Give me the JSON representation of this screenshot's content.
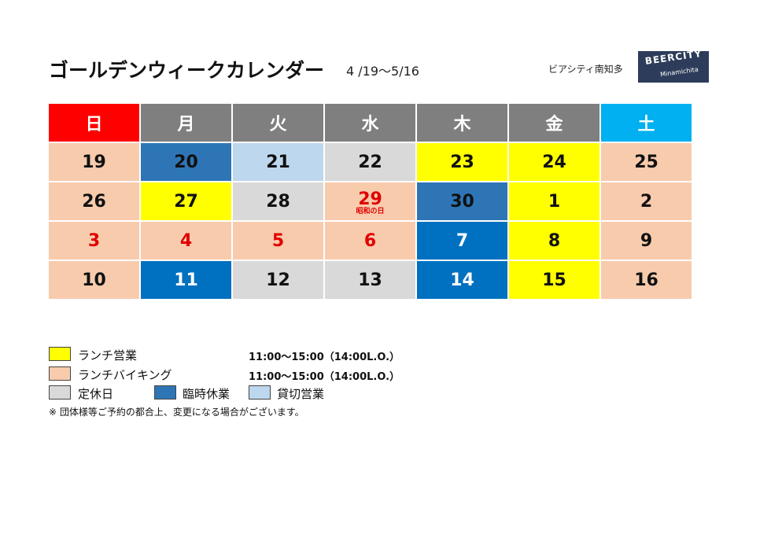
{
  "header": {
    "title": "ゴールデンウィークカレンダー",
    "range": "4 /19～5/16",
    "store": "ビアシティ南知多",
    "logo_line1": "BEERCITY",
    "logo_line2": "Minamichita"
  },
  "weekdays": [
    "日",
    "月",
    "火",
    "水",
    "木",
    "金",
    "土"
  ],
  "weeks": [
    [
      {
        "day": "19",
        "type": "buffet"
      },
      {
        "day": "20",
        "type": "temp"
      },
      {
        "day": "21",
        "type": "private"
      },
      {
        "day": "22",
        "type": "closed"
      },
      {
        "day": "23",
        "type": "lunch"
      },
      {
        "day": "24",
        "type": "lunch"
      },
      {
        "day": "25",
        "type": "buffet"
      }
    ],
    [
      {
        "day": "26",
        "type": "buffet"
      },
      {
        "day": "27",
        "type": "lunch"
      },
      {
        "day": "28",
        "type": "closed"
      },
      {
        "day": "29",
        "type": "buffet",
        "holiday": "昭和の日"
      },
      {
        "day": "30",
        "type": "temp"
      },
      {
        "day": "1",
        "type": "lunch"
      },
      {
        "day": "2",
        "type": "buffet"
      }
    ],
    [
      {
        "day": "3",
        "type": "buffet",
        "red": true
      },
      {
        "day": "4",
        "type": "buffet",
        "red": true
      },
      {
        "day": "5",
        "type": "buffet",
        "red": true
      },
      {
        "day": "6",
        "type": "buffet",
        "red": true
      },
      {
        "day": "7",
        "type": "temp2"
      },
      {
        "day": "8",
        "type": "lunch"
      },
      {
        "day": "9",
        "type": "buffet"
      }
    ],
    [
      {
        "day": "10",
        "type": "buffet"
      },
      {
        "day": "11",
        "type": "temp2"
      },
      {
        "day": "12",
        "type": "closed"
      },
      {
        "day": "13",
        "type": "closed"
      },
      {
        "day": "14",
        "type": "temp2"
      },
      {
        "day": "15",
        "type": "lunch"
      },
      {
        "day": "16",
        "type": "buffet"
      }
    ]
  ],
  "legend": {
    "lunch_label": "ランチ営業",
    "lunch_time": "11:00～15:00（14:00L.O.）",
    "buffet_label": "ランチバイキング",
    "buffet_time": "11:00～15:00（14:00L.O.）",
    "closed_label": "定休日",
    "temp_label": "臨時休業",
    "private_label": "貸切営業"
  },
  "footnote": "※ 団体様等ご予約の都合上、変更になる場合がございます。",
  "colors": {
    "lunch": "#ffff00",
    "buffet": "#f8cbad",
    "closed": "#d9d9d9",
    "temp": "#2e75b6",
    "private": "#bdd7ee",
    "sunday_header": "#ff0000",
    "saturday_header": "#00b0f0",
    "weekday_header": "#7f7f7f"
  }
}
